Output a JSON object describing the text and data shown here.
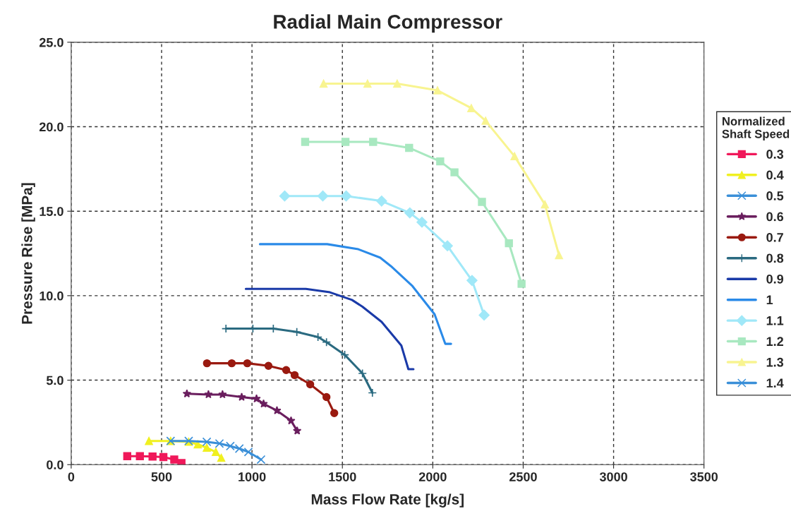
{
  "chart_data": {
    "type": "line",
    "title": "Radial Main Compressor",
    "xlabel": "Mass Flow Rate [kg/s]",
    "ylabel": "Pressure Rise [MPa]",
    "legend_title": "Normalized\nShaft Speed",
    "legend": "right",
    "grid": true,
    "line_style": "solid",
    "xlim": [
      0,
      3500
    ],
    "xticks": [
      0,
      500,
      1000,
      1500,
      2000,
      2500,
      3000,
      3500
    ],
    "ylim": [
      0,
      25
    ],
    "yticks": [
      {
        "value": 0,
        "label": "0.0"
      },
      {
        "value": 5,
        "label": "5.0"
      },
      {
        "value": 10,
        "label": "10.0"
      },
      {
        "value": 15,
        "label": "15.0"
      },
      {
        "value": 20,
        "label": "20.0"
      },
      {
        "value": 25,
        "label": "25.0"
      }
    ],
    "series": [
      {
        "name": "0.3",
        "color": "#f0185a",
        "marker": "square",
        "x": [
          310,
          380,
          450,
          510,
          570,
          610
        ],
        "values": [
          0.5,
          0.5,
          0.48,
          0.45,
          0.3,
          0.1
        ]
      },
      {
        "name": "0.4",
        "color": "#f0f020",
        "marker": "triangle",
        "x": [
          430,
          550,
          650,
          700,
          750,
          800,
          830
        ],
        "values": [
          1.4,
          1.4,
          1.35,
          1.2,
          1.0,
          0.75,
          0.4
        ]
      },
      {
        "name": "0.5",
        "color": "#3a8fd8",
        "marker": "cross",
        "x": [
          550,
          650,
          750,
          820,
          880,
          930,
          980,
          1050
        ],
        "values": [
          1.4,
          1.4,
          1.35,
          1.25,
          1.1,
          0.95,
          0.75,
          0.3
        ]
      },
      {
        "name": "0.6",
        "color": "#6a1e5e",
        "marker": "star",
        "x": [
          640,
          759,
          837,
          943,
          1025,
          1064,
          1138,
          1216,
          1250
        ],
        "values": [
          4.2,
          4.15,
          4.15,
          4.0,
          3.9,
          3.6,
          3.2,
          2.6,
          2.0
        ]
      },
      {
        "name": "0.7",
        "color": "#9a1a10",
        "marker": "circle",
        "x": [
          751,
          888,
          974,
          1091,
          1189,
          1236,
          1322,
          1412,
          1455
        ],
        "values": [
          6.0,
          6.0,
          6.0,
          5.85,
          5.6,
          5.3,
          4.75,
          4.0,
          3.05
        ]
      },
      {
        "name": "0.8",
        "color": "#2a6a80",
        "marker": "plus",
        "x": [
          856,
          1005,
          1118,
          1248,
          1365,
          1412,
          1513,
          1611,
          1666
        ],
        "values": [
          8.05,
          8.05,
          8.05,
          7.85,
          7.55,
          7.25,
          6.5,
          5.4,
          4.25
        ]
      },
      {
        "name": "0.9",
        "color": "#1a3aa8",
        "marker": "none",
        "x": [
          966,
          1298,
          1431,
          1553,
          1611,
          1717,
          1826,
          1865,
          1893
        ],
        "values": [
          10.4,
          10.4,
          10.2,
          9.75,
          9.35,
          8.45,
          7.05,
          5.65,
          5.65
        ]
      },
      {
        "name": "1",
        "color": "#2a8ae8",
        "marker": "none",
        "x": [
          1044,
          1416,
          1588,
          1709,
          1768,
          1885,
          2010,
          2069,
          2101
        ],
        "values": [
          13.05,
          13.05,
          12.75,
          12.25,
          11.75,
          10.6,
          8.9,
          7.15,
          7.15
        ]
      },
      {
        "name": "1.1",
        "color": "#a0e8f8",
        "marker": "diamond",
        "x": [
          1181,
          1392,
          1521,
          1717,
          1873,
          1940,
          2081,
          2217,
          2284
        ],
        "values": [
          15.9,
          15.9,
          15.9,
          15.6,
          14.9,
          14.35,
          12.95,
          10.9,
          8.85
        ]
      },
      {
        "name": "1.2",
        "color": "#a8e8c0",
        "marker": "square",
        "x": [
          1294,
          1517,
          1670,
          1869,
          2041,
          2120,
          2272,
          2421,
          2491
        ],
        "values": [
          19.1,
          19.1,
          19.1,
          18.75,
          17.95,
          17.3,
          15.55,
          13.1,
          10.7
        ]
      },
      {
        "name": "1.3",
        "color": "#f8f490",
        "marker": "triangle",
        "x": [
          1396,
          1639,
          1803,
          2026,
          2213,
          2292,
          2452,
          2620,
          2698
        ],
        "values": [
          22.55,
          22.55,
          22.55,
          22.15,
          21.1,
          20.35,
          18.25,
          15.4,
          12.4
        ]
      },
      {
        "name": "1.4",
        "color": "#3a8fd8",
        "marker": "cross"
      }
    ]
  }
}
